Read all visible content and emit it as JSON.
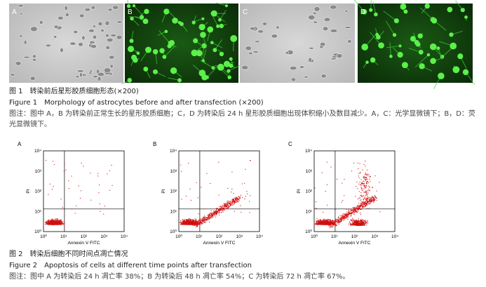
{
  "figure1": {
    "panels": [
      "A",
      "B",
      "C",
      "D"
    ],
    "title_cn": "图 1　转染前后星形胶质细胞形态(×200)",
    "title_en": "Figure 1　Morphology of astrocytes before and after transfection (×200)",
    "note": "图注：图中 A，B 为转染前正常生长的星形胶质细胞；C，D 为转染后 24 h 星形胶质细胞出现体积缩小及数目减少。A，C：光学显微镜下；B，D：荧光显微镜下。"
  },
  "figure2": {
    "panels": [
      "A",
      "B",
      "C"
    ],
    "y_label": "PI",
    "x_label": "Annexin V FITC",
    "ticks": [
      "10⁰",
      "10¹",
      "10²",
      "10³",
      "10⁴"
    ],
    "title_cn": "图 2　转染后细胞不同时间点凋亡情况",
    "title_en": "Figure 2　Apoptosis of cells at different time points after transfection",
    "note": "图注：图中 A 为转染后 24 h 凋亡率 38%；B 为转染后 48 h 凋亡率 54%；C 为转染后 72 h 凋亡率 67%。"
  }
}
